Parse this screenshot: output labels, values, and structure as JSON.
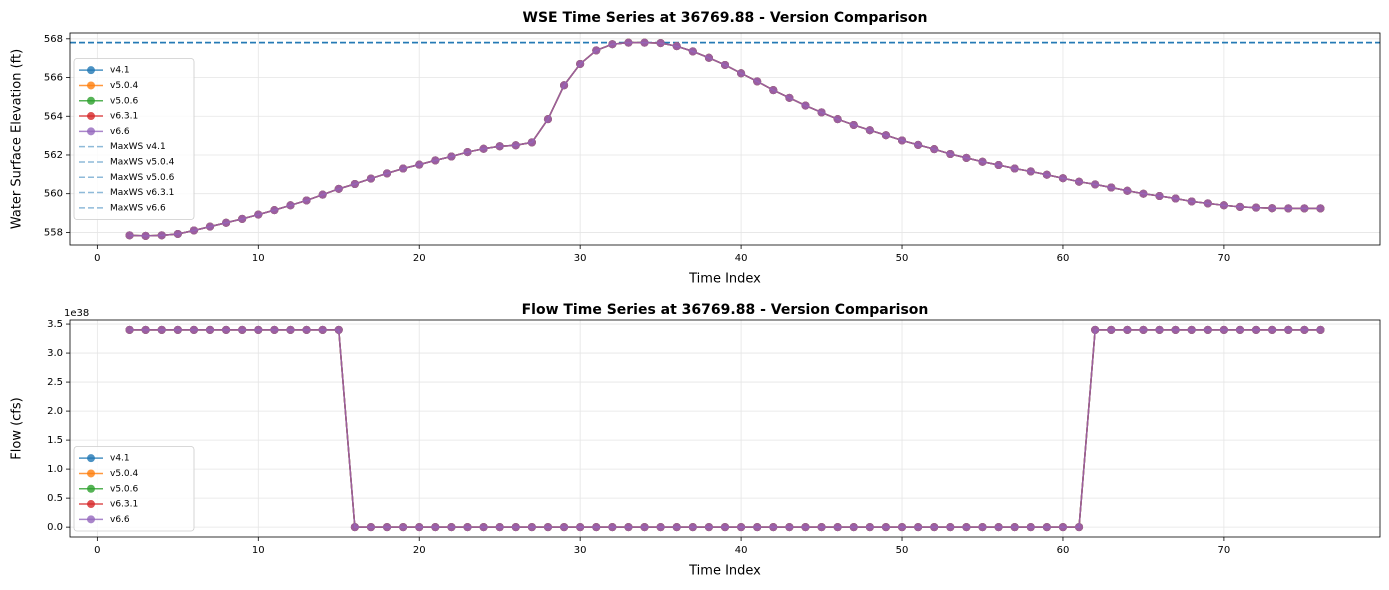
{
  "chart_data": [
    {
      "type": "line",
      "title": "WSE Time Series at 36769.88 - Version Comparison",
      "x_label": "Time Index",
      "y_label": "Water Surface Elevation (ft)",
      "x": [
        2,
        3,
        4,
        5,
        6,
        7,
        8,
        9,
        10,
        11,
        12,
        13,
        14,
        15,
        16,
        17,
        18,
        19,
        20,
        21,
        22,
        23,
        24,
        25,
        26,
        27,
        28,
        29,
        30,
        31,
        32,
        33,
        34,
        35,
        36,
        37,
        38,
        39,
        40,
        41,
        42,
        43,
        44,
        45,
        46,
        47,
        48,
        49,
        50,
        51,
        52,
        53,
        54,
        55,
        56,
        57,
        58,
        59,
        60,
        61,
        62,
        63,
        64,
        65,
        66,
        67,
        68,
        69,
        70,
        71,
        72,
        73,
        74,
        75,
        76
      ],
      "series": [
        {
          "name": "v4.1",
          "color": "#1f77b4",
          "values": [
            557.85,
            557.82,
            557.85,
            557.92,
            558.1,
            558.3,
            558.5,
            558.7,
            558.92,
            559.15,
            559.4,
            559.65,
            559.95,
            560.25,
            560.5,
            560.78,
            561.05,
            561.3,
            561.5,
            561.72,
            561.92,
            562.15,
            562.32,
            562.45,
            562.5,
            562.65,
            563.85,
            565.6,
            566.7,
            567.4,
            567.72,
            567.8,
            567.8,
            567.78,
            567.62,
            567.35,
            567.02,
            566.65,
            566.22,
            565.8,
            565.35,
            564.95,
            564.55,
            564.2,
            563.85,
            563.55,
            563.28,
            563.02,
            562.75,
            562.52,
            562.3,
            562.05,
            561.85,
            561.65,
            561.48,
            561.3,
            561.15,
            560.98,
            560.8,
            560.62,
            560.48,
            560.32,
            560.15,
            560.0,
            559.88,
            559.75,
            559.6,
            559.5,
            559.4,
            559.32,
            559.28,
            559.25,
            559.24,
            559.24,
            559.24
          ]
        },
        {
          "name": "v5.0.4",
          "color": "#ff7f0e",
          "values": [
            557.85,
            557.82,
            557.85,
            557.92,
            558.1,
            558.3,
            558.5,
            558.7,
            558.92,
            559.15,
            559.4,
            559.65,
            559.95,
            560.25,
            560.5,
            560.78,
            561.05,
            561.3,
            561.5,
            561.72,
            561.92,
            562.15,
            562.32,
            562.45,
            562.5,
            562.65,
            563.85,
            565.6,
            566.7,
            567.4,
            567.72,
            567.8,
            567.8,
            567.78,
            567.62,
            567.35,
            567.02,
            566.65,
            566.22,
            565.8,
            565.35,
            564.95,
            564.55,
            564.2,
            563.85,
            563.55,
            563.28,
            563.02,
            562.75,
            562.52,
            562.3,
            562.05,
            561.85,
            561.65,
            561.48,
            561.3,
            561.15,
            560.98,
            560.8,
            560.62,
            560.48,
            560.32,
            560.15,
            560.0,
            559.88,
            559.75,
            559.6,
            559.5,
            559.4,
            559.32,
            559.28,
            559.25,
            559.24,
            559.24,
            559.24
          ]
        },
        {
          "name": "v5.0.6",
          "color": "#2ca02c",
          "values": [
            557.85,
            557.82,
            557.85,
            557.92,
            558.1,
            558.3,
            558.5,
            558.7,
            558.92,
            559.15,
            559.4,
            559.65,
            559.95,
            560.25,
            560.5,
            560.78,
            561.05,
            561.3,
            561.5,
            561.72,
            561.92,
            562.15,
            562.32,
            562.45,
            562.5,
            562.65,
            563.85,
            565.6,
            566.7,
            567.4,
            567.72,
            567.8,
            567.8,
            567.78,
            567.62,
            567.35,
            567.02,
            566.65,
            566.22,
            565.8,
            565.35,
            564.95,
            564.55,
            564.2,
            563.85,
            563.55,
            563.28,
            563.02,
            562.75,
            562.52,
            562.3,
            562.05,
            561.85,
            561.65,
            561.48,
            561.3,
            561.15,
            560.98,
            560.8,
            560.62,
            560.48,
            560.32,
            560.15,
            560.0,
            559.88,
            559.75,
            559.6,
            559.5,
            559.4,
            559.32,
            559.28,
            559.25,
            559.24,
            559.24,
            559.24
          ]
        },
        {
          "name": "v6.3.1",
          "color": "#d62728",
          "values": [
            557.85,
            557.82,
            557.85,
            557.92,
            558.1,
            558.3,
            558.5,
            558.7,
            558.92,
            559.15,
            559.4,
            559.65,
            559.95,
            560.25,
            560.5,
            560.78,
            561.05,
            561.3,
            561.5,
            561.72,
            561.92,
            562.15,
            562.32,
            562.45,
            562.5,
            562.65,
            563.85,
            565.6,
            566.7,
            567.4,
            567.72,
            567.8,
            567.8,
            567.78,
            567.62,
            567.35,
            567.02,
            566.65,
            566.22,
            565.8,
            565.35,
            564.95,
            564.55,
            564.2,
            563.85,
            563.55,
            563.28,
            563.02,
            562.75,
            562.52,
            562.3,
            562.05,
            561.85,
            561.65,
            561.48,
            561.3,
            561.15,
            560.98,
            560.8,
            560.62,
            560.48,
            560.32,
            560.15,
            560.0,
            559.88,
            559.75,
            559.6,
            559.5,
            559.4,
            559.32,
            559.28,
            559.25,
            559.24,
            559.24,
            559.24
          ]
        },
        {
          "name": "v6.6",
          "color": "#9467bd",
          "values": [
            557.85,
            557.82,
            557.85,
            557.92,
            558.1,
            558.3,
            558.5,
            558.7,
            558.92,
            559.15,
            559.4,
            559.65,
            559.95,
            560.25,
            560.5,
            560.78,
            561.05,
            561.3,
            561.5,
            561.72,
            561.92,
            562.15,
            562.32,
            562.45,
            562.5,
            562.65,
            563.85,
            565.6,
            566.7,
            567.4,
            567.72,
            567.8,
            567.8,
            567.78,
            567.62,
            567.35,
            567.02,
            566.65,
            566.22,
            565.8,
            565.35,
            564.95,
            564.55,
            564.2,
            563.85,
            563.55,
            563.28,
            563.02,
            562.75,
            562.52,
            562.3,
            562.05,
            561.85,
            561.65,
            561.48,
            561.3,
            561.15,
            560.98,
            560.8,
            560.62,
            560.48,
            560.32,
            560.15,
            560.0,
            559.88,
            559.75,
            559.6,
            559.5,
            559.4,
            559.32,
            559.28,
            559.25,
            559.24,
            559.24,
            559.24
          ]
        }
      ],
      "hlines": [
        {
          "name": "MaxWS v4.1",
          "value": 567.8,
          "color": "#1f77b4"
        },
        {
          "name": "MaxWS v5.0.4",
          "value": 567.8,
          "color": "#1f77b4"
        },
        {
          "name": "MaxWS v5.0.6",
          "value": 567.8,
          "color": "#1f77b4"
        },
        {
          "name": "MaxWS v6.3.1",
          "value": 567.8,
          "color": "#1f77b4"
        },
        {
          "name": "MaxWS v6.6",
          "value": 567.8,
          "color": "#1f77b4"
        }
      ],
      "xlim": [
        -1.7,
        79.7
      ],
      "xticks": [
        0,
        10,
        20,
        30,
        40,
        50,
        60,
        70
      ],
      "ylim": [
        557.35,
        568.3
      ],
      "yticks": [
        558,
        560,
        562,
        564,
        566,
        568
      ],
      "grid": true,
      "legend_loc": "center left"
    },
    {
      "type": "line",
      "title": "Flow Time Series at 36769.88 - Version Comparison",
      "x_label": "Time Index",
      "y_label": "Flow (cfs)",
      "y_offset_label": "1e38",
      "x": [
        2,
        3,
        4,
        5,
        6,
        7,
        8,
        9,
        10,
        11,
        12,
        13,
        14,
        15,
        16,
        17,
        18,
        19,
        20,
        21,
        22,
        23,
        24,
        25,
        26,
        27,
        28,
        29,
        30,
        31,
        32,
        33,
        34,
        35,
        36,
        37,
        38,
        39,
        40,
        41,
        42,
        43,
        44,
        45,
        46,
        47,
        48,
        49,
        50,
        51,
        52,
        53,
        54,
        55,
        56,
        57,
        58,
        59,
        60,
        61,
        62,
        63,
        64,
        65,
        66,
        67,
        68,
        69,
        70,
        71,
        72,
        73,
        74,
        75,
        76
      ],
      "series": [
        {
          "name": "v4.1",
          "color": "#1f77b4",
          "values": [
            3.4e+38,
            3.4e+38,
            3.4e+38,
            3.4e+38,
            3.4e+38,
            3.4e+38,
            3.4e+38,
            3.4e+38,
            3.4e+38,
            3.4e+38,
            3.4e+38,
            3.4e+38,
            3.4e+38,
            3.4e+38,
            0,
            0,
            0,
            0,
            0,
            0,
            0,
            0,
            0,
            0,
            0,
            0,
            0,
            0,
            0,
            0,
            0,
            0,
            0,
            0,
            0,
            0,
            0,
            0,
            0,
            0,
            0,
            0,
            0,
            0,
            0,
            0,
            0,
            0,
            0,
            0,
            0,
            0,
            0,
            0,
            0,
            0,
            0,
            0,
            0,
            0,
            3.4e+38,
            3.4e+38,
            3.4e+38,
            3.4e+38,
            3.4e+38,
            3.4e+38,
            3.4e+38,
            3.4e+38,
            3.4e+38,
            3.4e+38,
            3.4e+38,
            3.4e+38,
            3.4e+38,
            3.4e+38,
            3.4e+38
          ]
        },
        {
          "name": "v5.0.4",
          "color": "#ff7f0e",
          "values": [
            3.4e+38,
            3.4e+38,
            3.4e+38,
            3.4e+38,
            3.4e+38,
            3.4e+38,
            3.4e+38,
            3.4e+38,
            3.4e+38,
            3.4e+38,
            3.4e+38,
            3.4e+38,
            3.4e+38,
            3.4e+38,
            0,
            0,
            0,
            0,
            0,
            0,
            0,
            0,
            0,
            0,
            0,
            0,
            0,
            0,
            0,
            0,
            0,
            0,
            0,
            0,
            0,
            0,
            0,
            0,
            0,
            0,
            0,
            0,
            0,
            0,
            0,
            0,
            0,
            0,
            0,
            0,
            0,
            0,
            0,
            0,
            0,
            0,
            0,
            0,
            0,
            0,
            3.4e+38,
            3.4e+38,
            3.4e+38,
            3.4e+38,
            3.4e+38,
            3.4e+38,
            3.4e+38,
            3.4e+38,
            3.4e+38,
            3.4e+38,
            3.4e+38,
            3.4e+38,
            3.4e+38,
            3.4e+38,
            3.4e+38
          ]
        },
        {
          "name": "v5.0.6",
          "color": "#2ca02c",
          "values": [
            3.4e+38,
            3.4e+38,
            3.4e+38,
            3.4e+38,
            3.4e+38,
            3.4e+38,
            3.4e+38,
            3.4e+38,
            3.4e+38,
            3.4e+38,
            3.4e+38,
            3.4e+38,
            3.4e+38,
            3.4e+38,
            0,
            0,
            0,
            0,
            0,
            0,
            0,
            0,
            0,
            0,
            0,
            0,
            0,
            0,
            0,
            0,
            0,
            0,
            0,
            0,
            0,
            0,
            0,
            0,
            0,
            0,
            0,
            0,
            0,
            0,
            0,
            0,
            0,
            0,
            0,
            0,
            0,
            0,
            0,
            0,
            0,
            0,
            0,
            0,
            0,
            0,
            3.4e+38,
            3.4e+38,
            3.4e+38,
            3.4e+38,
            3.4e+38,
            3.4e+38,
            3.4e+38,
            3.4e+38,
            3.4e+38,
            3.4e+38,
            3.4e+38,
            3.4e+38,
            3.4e+38,
            3.4e+38,
            3.4e+38
          ]
        },
        {
          "name": "v6.3.1",
          "color": "#d62728",
          "values": [
            3.4e+38,
            3.4e+38,
            3.4e+38,
            3.4e+38,
            3.4e+38,
            3.4e+38,
            3.4e+38,
            3.4e+38,
            3.4e+38,
            3.4e+38,
            3.4e+38,
            3.4e+38,
            3.4e+38,
            3.4e+38,
            0,
            0,
            0,
            0,
            0,
            0,
            0,
            0,
            0,
            0,
            0,
            0,
            0,
            0,
            0,
            0,
            0,
            0,
            0,
            0,
            0,
            0,
            0,
            0,
            0,
            0,
            0,
            0,
            0,
            0,
            0,
            0,
            0,
            0,
            0,
            0,
            0,
            0,
            0,
            0,
            0,
            0,
            0,
            0,
            0,
            0,
            3.4e+38,
            3.4e+38,
            3.4e+38,
            3.4e+38,
            3.4e+38,
            3.4e+38,
            3.4e+38,
            3.4e+38,
            3.4e+38,
            3.4e+38,
            3.4e+38,
            3.4e+38,
            3.4e+38,
            3.4e+38,
            3.4e+38
          ]
        },
        {
          "name": "v6.6",
          "color": "#9467bd",
          "values": [
            3.4e+38,
            3.4e+38,
            3.4e+38,
            3.4e+38,
            3.4e+38,
            3.4e+38,
            3.4e+38,
            3.4e+38,
            3.4e+38,
            3.4e+38,
            3.4e+38,
            3.4e+38,
            3.4e+38,
            3.4e+38,
            0,
            0,
            0,
            0,
            0,
            0,
            0,
            0,
            0,
            0,
            0,
            0,
            0,
            0,
            0,
            0,
            0,
            0,
            0,
            0,
            0,
            0,
            0,
            0,
            0,
            0,
            0,
            0,
            0,
            0,
            0,
            0,
            0,
            0,
            0,
            0,
            0,
            0,
            0,
            0,
            0,
            0,
            0,
            0,
            0,
            0,
            3.4e+38,
            3.4e+38,
            3.4e+38,
            3.4e+38,
            3.4e+38,
            3.4e+38,
            3.4e+38,
            3.4e+38,
            3.4e+38,
            3.4e+38,
            3.4e+38,
            3.4e+38,
            3.4e+38,
            3.4e+38,
            3.4e+38
          ]
        }
      ],
      "xlim": [
        -1.7,
        79.7
      ],
      "xticks": [
        0,
        10,
        20,
        30,
        40,
        50,
        60,
        70
      ],
      "ylim": [
        -1.7e+37,
        3.57e+38
      ],
      "yticks": [
        {
          "value": 0,
          "label": "0.0"
        },
        {
          "value": 5e+37,
          "label": "0.5"
        },
        {
          "value": 1e+38,
          "label": "1.0"
        },
        {
          "value": 1.5e+38,
          "label": "1.5"
        },
        {
          "value": 2e+38,
          "label": "2.0"
        },
        {
          "value": 2.5e+38,
          "label": "2.5"
        },
        {
          "value": 3e+38,
          "label": "3.0"
        },
        {
          "value": 3.5e+38,
          "label": "3.5"
        }
      ],
      "grid": true,
      "legend_loc": "lower left"
    }
  ]
}
